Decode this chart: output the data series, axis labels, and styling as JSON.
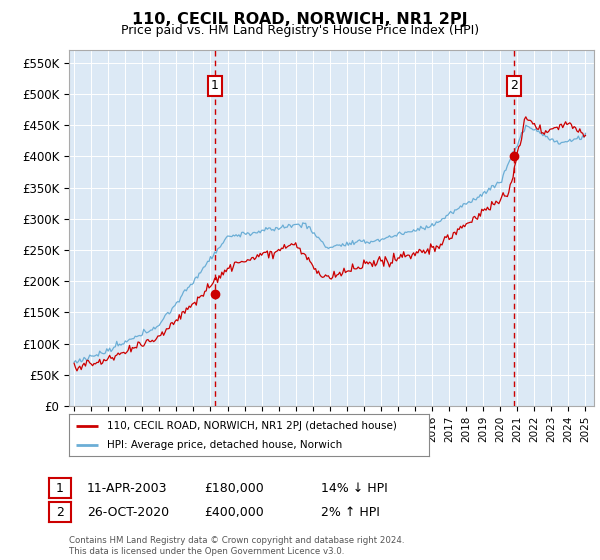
{
  "title": "110, CECIL ROAD, NORWICH, NR1 2PJ",
  "subtitle": "Price paid vs. HM Land Registry's House Price Index (HPI)",
  "ylabel_ticks": [
    "£0",
    "£50K",
    "£100K",
    "£150K",
    "£200K",
    "£250K",
    "£300K",
    "£350K",
    "£400K",
    "£450K",
    "£500K",
    "£550K"
  ],
  "ytick_vals": [
    0,
    50000,
    100000,
    150000,
    200000,
    250000,
    300000,
    350000,
    400000,
    450000,
    500000,
    550000
  ],
  "ylim": [
    0,
    570000
  ],
  "xlim_start": 1994.7,
  "xlim_end": 2025.5,
  "bg_color": "#dce9f5",
  "grid_color": "#ffffff",
  "sale1_x": 2003.27,
  "sale1_y": 180000,
  "sale2_x": 2020.82,
  "sale2_y": 400000,
  "legend_line1": "110, CECIL ROAD, NORWICH, NR1 2PJ (detached house)",
  "legend_line2": "HPI: Average price, detached house, Norwich",
  "sale1_date": "11-APR-2003",
  "sale1_price": "£180,000",
  "sale1_hpi": "14% ↓ HPI",
  "sale2_date": "26-OCT-2020",
  "sale2_price": "£400,000",
  "sale2_hpi": "2% ↑ HPI",
  "footer": "Contains HM Land Registry data © Crown copyright and database right 2024.\nThis data is licensed under the Open Government Licence v3.0.",
  "hpi_color": "#6baed6",
  "sale_color": "#cc0000",
  "vline_color": "#cc0000"
}
